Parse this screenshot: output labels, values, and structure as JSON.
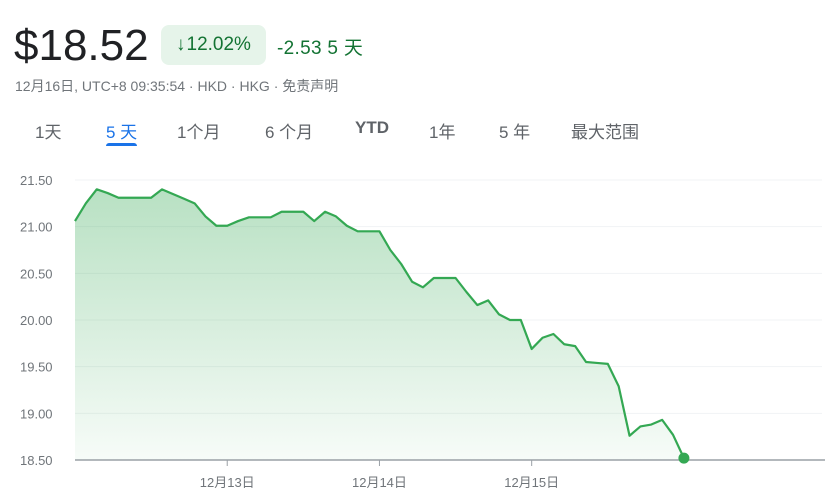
{
  "quote": {
    "price": "$18.52",
    "change_percent": "12.02%",
    "direction_icon": "arrow-down-icon",
    "change_abs": "-2.53",
    "change_period": "5 天",
    "meta": "12月16日, UTC+8 09:35:54 · HKD · HKG · 免责声明",
    "accent_color": "#137333"
  },
  "tabs": [
    {
      "label": "1天",
      "active": false
    },
    {
      "label": "5 天",
      "active": true
    },
    {
      "label": "1个月",
      "active": false
    },
    {
      "label": "6 个月",
      "active": false
    },
    {
      "label": "YTD",
      "active": false
    },
    {
      "label": "1年",
      "active": false
    },
    {
      "label": "5 年",
      "active": false
    },
    {
      "label": "最大范围",
      "active": false
    }
  ],
  "chart_data": {
    "type": "area",
    "line_color": "#34a853",
    "ylim": [
      18.5,
      21.5
    ],
    "y_ticks": [
      "21.50",
      "21.00",
      "20.50",
      "20.00",
      "19.50",
      "19.00",
      "18.50"
    ],
    "x_ticks": [
      {
        "label": "12月13日",
        "index": 14
      },
      {
        "label": "12月14日",
        "index": 28
      },
      {
        "label": "12月15日",
        "index": 42
      }
    ],
    "x_range": [
      0,
      68.7
    ],
    "grid": true,
    "values": [
      21.06,
      21.25,
      21.4,
      21.36,
      21.31,
      21.31,
      21.31,
      21.31,
      21.4,
      21.35,
      21.3,
      21.25,
      21.11,
      21.01,
      21.01,
      21.06,
      21.1,
      21.1,
      21.1,
      21.16,
      21.16,
      21.16,
      21.06,
      21.16,
      21.11,
      21.01,
      20.95,
      20.95,
      20.95,
      20.75,
      20.6,
      20.41,
      20.35,
      20.45,
      20.45,
      20.45,
      20.3,
      20.16,
      20.21,
      20.06,
      20.0,
      20.0,
      19.69,
      19.81,
      19.85,
      19.74,
      19.72,
      19.55,
      19.54,
      19.53,
      19.29,
      18.76,
      18.86,
      18.88,
      18.93,
      18.77,
      18.52
    ]
  }
}
